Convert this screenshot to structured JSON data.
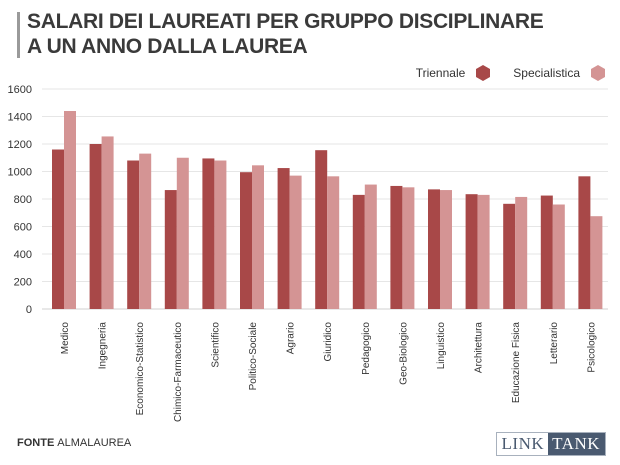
{
  "header": {
    "title_line1": "SALARI DEI LAUREATI PER GRUPPO DISCIPLINARE",
    "title_line2": "A UN ANNO DALLA LAUREA"
  },
  "legend": [
    {
      "label": "Triennale",
      "color": "#a84848"
    },
    {
      "label": "Specialistica",
      "color": "#d49494"
    }
  ],
  "footer": {
    "source_label": "FONTE",
    "source_name": "ALMALAUREA",
    "logo_part1": "LINK",
    "logo_part2": "TANK"
  },
  "chart_data": {
    "type": "bar",
    "title": "SALARI DEI LAUREATI PER GRUPPO DISCIPLINARE A UN ANNO DALLA LAUREA",
    "xlabel": "",
    "ylabel": "",
    "ylim": [
      0,
      1600
    ],
    "yticks": [
      0,
      200,
      400,
      600,
      800,
      1000,
      1200,
      1400,
      1600
    ],
    "grid": true,
    "legend_position": "top-right",
    "categories": [
      "Medico",
      "Ingegneria",
      "Economico-Statistico",
      "Chimico-Farmaceutico",
      "Scientifico",
      "Politico-Sociale",
      "Agrario",
      "Giuridico",
      "Pedagogico",
      "Geo-Biologico",
      "Linguistico",
      "Architettura",
      "Educazione Fisica",
      "Letterario",
      "Psicologico"
    ],
    "series": [
      {
        "name": "Triennale",
        "color": "#a84848",
        "values": [
          1160,
          1200,
          1080,
          865,
          1095,
          995,
          1025,
          1155,
          830,
          895,
          870,
          835,
          765,
          825,
          965
        ]
      },
      {
        "name": "Specialistica",
        "color": "#d49494",
        "values": [
          1440,
          1255,
          1130,
          1100,
          1080,
          1045,
          970,
          965,
          905,
          885,
          865,
          830,
          815,
          760,
          675
        ]
      }
    ]
  }
}
